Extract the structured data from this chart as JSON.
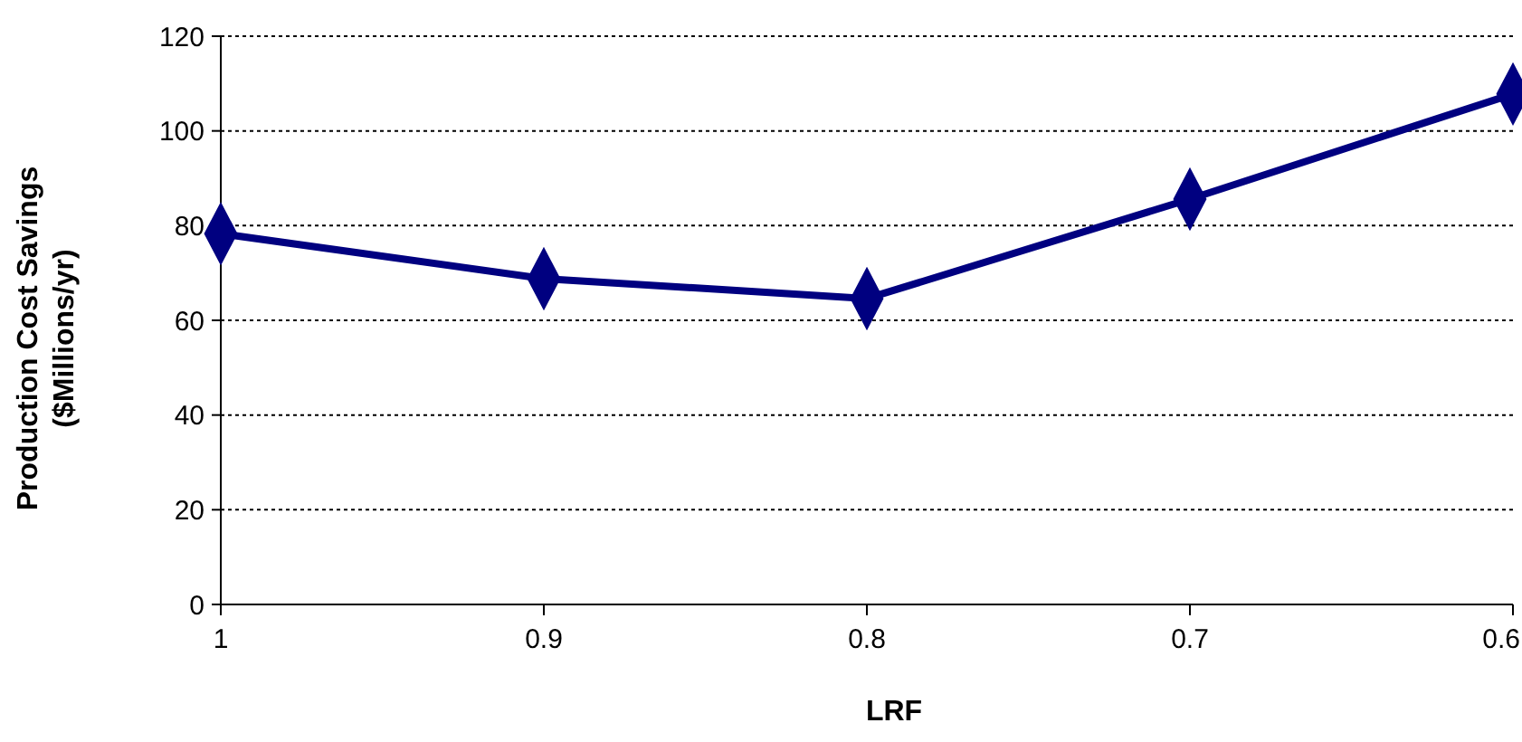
{
  "chart_data": {
    "type": "line",
    "xlabel": "LRF",
    "ylabel": "Production Cost Savings\n($Millions/yr)",
    "x": [
      1,
      0.9,
      0.8,
      0.7,
      0.6
    ],
    "series": [
      {
        "color": "#000080",
        "values": [
          78.3,
          68.8,
          64.6,
          85.6,
          107.8
        ]
      }
    ],
    "xlim": [
      1,
      0.6
    ],
    "xticks": [
      1,
      0.9,
      0.8,
      0.7,
      0.6
    ],
    "ylim": [
      0,
      120
    ],
    "yticks": [
      0,
      20,
      40,
      60,
      80,
      100,
      120
    ],
    "grid": "y",
    "marker": "diamond",
    "line_style": "solid"
  }
}
